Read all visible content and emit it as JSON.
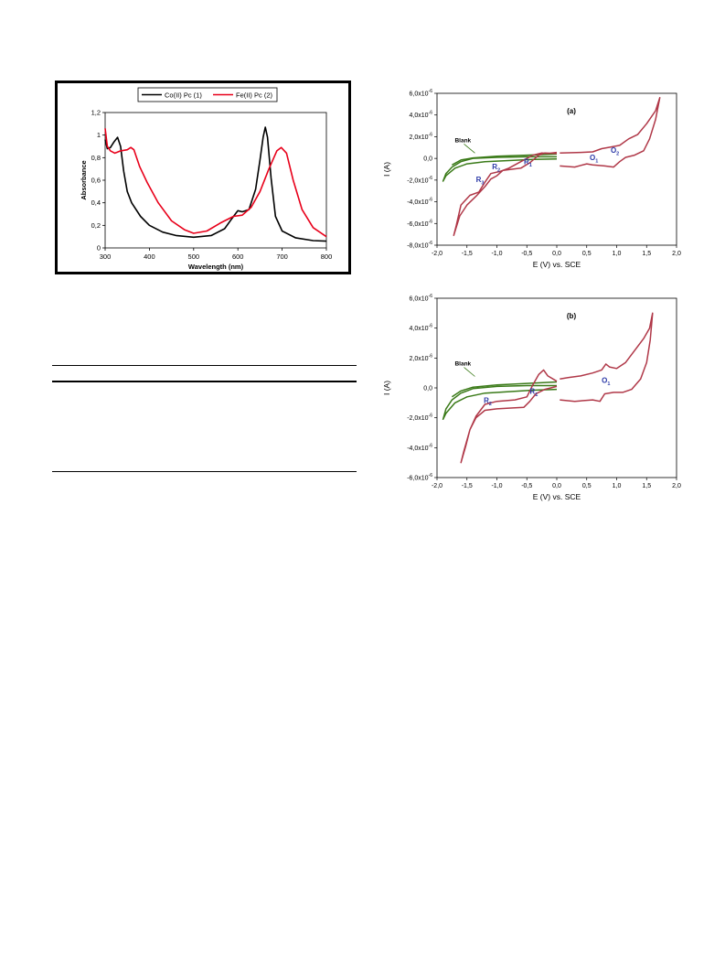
{
  "chart_data": [
    {
      "id": "uv",
      "type": "line",
      "xlabel": "Wavelength (nm)",
      "ylabel": "Absorbance",
      "xlim": [
        300,
        800
      ],
      "ylim": [
        0,
        1.2
      ],
      "xticks": [
        "300",
        "400",
        "500",
        "600",
        "700",
        "800"
      ],
      "yticks": [
        "0",
        "0,2",
        "0,4",
        "0,6",
        "0,8",
        "1",
        "1,2"
      ],
      "legend_position": "top",
      "series": [
        {
          "name": "Co(II) Pc (1)",
          "color": "#000000",
          "points": [
            [
              300,
              0.96
            ],
            [
              305,
              0.88
            ],
            [
              312,
              0.89
            ],
            [
              320,
              0.94
            ],
            [
              328,
              0.98
            ],
            [
              335,
              0.9
            ],
            [
              342,
              0.68
            ],
            [
              350,
              0.5
            ],
            [
              360,
              0.4
            ],
            [
              380,
              0.28
            ],
            [
              400,
              0.2
            ],
            [
              430,
              0.14
            ],
            [
              460,
              0.11
            ],
            [
              500,
              0.095
            ],
            [
              540,
              0.11
            ],
            [
              570,
              0.17
            ],
            [
              590,
              0.28
            ],
            [
              600,
              0.33
            ],
            [
              610,
              0.32
            ],
            [
              625,
              0.34
            ],
            [
              640,
              0.52
            ],
            [
              650,
              0.78
            ],
            [
              657,
              0.98
            ],
            [
              662,
              1.07
            ],
            [
              667,
              0.98
            ],
            [
              675,
              0.62
            ],
            [
              685,
              0.28
            ],
            [
              700,
              0.15
            ],
            [
              730,
              0.09
            ],
            [
              770,
              0.065
            ],
            [
              800,
              0.06
            ]
          ]
        },
        {
          "name": "Fe(II) Pc (2)",
          "color": "#e8001a",
          "points": [
            [
              300,
              1.06
            ],
            [
              305,
              0.9
            ],
            [
              312,
              0.86
            ],
            [
              322,
              0.84
            ],
            [
              335,
              0.86
            ],
            [
              350,
              0.87
            ],
            [
              358,
              0.89
            ],
            [
              365,
              0.87
            ],
            [
              378,
              0.72
            ],
            [
              395,
              0.58
            ],
            [
              420,
              0.4
            ],
            [
              450,
              0.24
            ],
            [
              480,
              0.16
            ],
            [
              500,
              0.13
            ],
            [
              530,
              0.15
            ],
            [
              560,
              0.22
            ],
            [
              590,
              0.28
            ],
            [
              610,
              0.29
            ],
            [
              630,
              0.36
            ],
            [
              650,
              0.5
            ],
            [
              670,
              0.7
            ],
            [
              688,
              0.86
            ],
            [
              698,
              0.89
            ],
            [
              710,
              0.84
            ],
            [
              725,
              0.6
            ],
            [
              745,
              0.34
            ],
            [
              770,
              0.18
            ],
            [
              800,
              0.1
            ]
          ]
        }
      ]
    },
    {
      "id": "cv_a",
      "type": "line",
      "panel_label": "(a)",
      "xlabel": "E (V) vs. SCE",
      "ylabel": "I (A)",
      "xlim": [
        -2.0,
        2.0
      ],
      "ylim": [
        -8e-06,
        6e-06
      ],
      "xticks": [
        "-2,0",
        "-1,5",
        "-1,0",
        "-0,5",
        "0,0",
        "0,5",
        "1,0",
        "1,5",
        "2,0"
      ],
      "yticks": [
        {
          "m": "6,0x10",
          "e": "-6"
        },
        {
          "m": "4,0x10",
          "e": "-6"
        },
        {
          "m": "2,0x10",
          "e": "-6"
        },
        {
          "m": "0,0",
          "e": ""
        },
        {
          "m": "-2,0x10",
          "e": "-6"
        },
        {
          "m": "-4,0x10",
          "e": "-6"
        },
        {
          "m": "-6,0x10",
          "e": "-6"
        },
        {
          "m": "-8,0x10",
          "e": "-6"
        }
      ],
      "blank_label": "Blank",
      "peak_labels": [
        {
          "letter": "R",
          "sub": "1",
          "e": -0.55,
          "i": -5.5e-07
        },
        {
          "letter": "R",
          "sub": "2",
          "e": -1.08,
          "i": -1e-06
        },
        {
          "letter": "R",
          "sub": "3",
          "e": -1.35,
          "i": -2.2e-06
        },
        {
          "letter": "O",
          "sub": "1",
          "e": 0.55,
          "i": -1.5e-07
        },
        {
          "letter": "O",
          "sub": "2",
          "e": 0.9,
          "i": 5e-07
        }
      ],
      "series": [
        {
          "name": "Blank",
          "color": "#3a7a18",
          "points": [
            [
              0.0,
              1.5e-07
            ],
            [
              -0.5,
              1.5e-07
            ],
            [
              -1.0,
              1e-07
            ],
            [
              -1.4,
              0.0
            ],
            [
              -1.6,
              -3e-07
            ],
            [
              -1.75,
              -8e-07
            ],
            [
              -1.85,
              -1.4e-06
            ],
            [
              -1.9,
              -2.1e-06
            ],
            [
              -1.85,
              -1.6e-06
            ],
            [
              -1.7,
              -9e-07
            ],
            [
              -1.5,
              -5e-07
            ],
            [
              -1.2,
              -3e-07
            ],
            [
              -0.8,
              -2e-07
            ],
            [
              -0.4,
              -1e-07
            ],
            [
              0.0,
              -5e-08
            ]
          ]
        },
        {
          "name": "Blank-2",
          "color": "#3a7a18",
          "points": [
            [
              0.0,
              4e-07
            ],
            [
              -0.5,
              3e-07
            ],
            [
              -1.0,
              2e-07
            ],
            [
              -1.4,
              5e-08
            ],
            [
              -1.6,
              -1.5e-07
            ],
            [
              -1.75,
              -6e-07
            ]
          ]
        },
        {
          "name": "Reduction",
          "color": "#b03848",
          "points": [
            [
              0.0,
              4.5e-07
            ],
            [
              -0.2,
              5e-07
            ],
            [
              -0.3,
              3e-07
            ],
            [
              -0.45,
              -4e-07
            ],
            [
              -0.6,
              -9e-07
            ],
            [
              -0.75,
              -1e-06
            ],
            [
              -0.9,
              -1.1e-06
            ],
            [
              -1.0,
              -1.6e-06
            ],
            [
              -1.1,
              -1.9e-06
            ],
            [
              -1.2,
              -2.6e-06
            ],
            [
              -1.35,
              -3.5e-06
            ],
            [
              -1.5,
              -4.3e-06
            ],
            [
              -1.62,
              -5.3e-06
            ],
            [
              -1.72,
              -7.1e-06
            ],
            [
              -1.68,
              -6.2e-06
            ],
            [
              -1.6,
              -4.3e-06
            ],
            [
              -1.45,
              -3.4e-06
            ],
            [
              -1.3,
              -3.1e-06
            ],
            [
              -1.2,
              -2.2e-06
            ],
            [
              -1.1,
              -1.4e-06
            ],
            [
              -0.95,
              -1.2e-06
            ],
            [
              -0.8,
              -9e-07
            ],
            [
              -0.6,
              -3e-07
            ],
            [
              -0.4,
              3e-07
            ],
            [
              -0.25,
              5e-07
            ],
            [
              -0.15,
              4.5e-07
            ],
            [
              0.0,
              5.5e-07
            ]
          ]
        },
        {
          "name": "Oxidation",
          "color": "#b03848",
          "points": [
            [
              0.05,
              -7e-07
            ],
            [
              0.3,
              -8e-07
            ],
            [
              0.5,
              -5e-07
            ],
            [
              0.6,
              -6e-07
            ],
            [
              0.8,
              -7e-07
            ],
            [
              0.95,
              -8e-07
            ],
            [
              1.05,
              -3e-07
            ],
            [
              1.15,
              1e-07
            ],
            [
              1.3,
              3e-07
            ],
            [
              1.45,
              7e-07
            ],
            [
              1.55,
              1.8e-06
            ],
            [
              1.65,
              3.6e-06
            ],
            [
              1.72,
              5.6e-06
            ],
            [
              1.65,
              4.4e-06
            ],
            [
              1.5,
              3.2e-06
            ],
            [
              1.35,
              2.2e-06
            ],
            [
              1.2,
              1.8e-06
            ],
            [
              1.05,
              1.2e-06
            ],
            [
              0.9,
              1.05e-06
            ],
            [
              0.75,
              9e-07
            ],
            [
              0.6,
              6e-07
            ],
            [
              0.4,
              5.5e-07
            ],
            [
              0.05,
              5e-07
            ]
          ]
        }
      ]
    },
    {
      "id": "cv_b",
      "type": "line",
      "panel_label": "(b)",
      "xlabel": "E (V) vs. SCE",
      "ylabel": "I (A)",
      "xlim": [
        -2.0,
        2.0
      ],
      "ylim": [
        -6e-06,
        6e-06
      ],
      "xticks": [
        "-2,0",
        "-1,5",
        "-1,0",
        "-0,5",
        "0,0",
        "0,5",
        "1,0",
        "1,5",
        "2,0"
      ],
      "yticks": [
        {
          "m": "6,0x10",
          "e": "-6"
        },
        {
          "m": "4,0x10",
          "e": "-6"
        },
        {
          "m": "2,0x10",
          "e": "-6"
        },
        {
          "m": "0,0",
          "e": ""
        },
        {
          "m": "-2,0x10",
          "e": "-6"
        },
        {
          "m": "-4,0x10",
          "e": "-6"
        },
        {
          "m": "-6,0x10",
          "e": "-6"
        }
      ],
      "blank_label": "Blank",
      "peak_labels": [
        {
          "letter": "R",
          "sub": "1",
          "e": -0.45,
          "i": -4e-07
        },
        {
          "letter": "R",
          "sub": "2",
          "e": -1.22,
          "i": -1e-06
        },
        {
          "letter": "O",
          "sub": "1",
          "e": 0.75,
          "i": 3.5e-07
        }
      ],
      "series": [
        {
          "name": "Blank",
          "color": "#3a7a18",
          "points": [
            [
              0.0,
              1.5e-07
            ],
            [
              -0.5,
              1.5e-07
            ],
            [
              -1.0,
              1e-07
            ],
            [
              -1.4,
              -5e-08
            ],
            [
              -1.6,
              -3.5e-07
            ],
            [
              -1.75,
              -8e-07
            ],
            [
              -1.85,
              -1.4e-06
            ],
            [
              -1.9,
              -2.1e-06
            ],
            [
              -1.85,
              -1.7e-06
            ],
            [
              -1.7,
              -1e-06
            ],
            [
              -1.5,
              -6e-07
            ],
            [
              -1.2,
              -3.5e-07
            ],
            [
              -0.8,
              -2.5e-07
            ],
            [
              -0.4,
              -1.5e-07
            ],
            [
              0.0,
              -1e-07
            ]
          ]
        },
        {
          "name": "Blank-2",
          "color": "#3a7a18",
          "points": [
            [
              0.0,
              4e-07
            ],
            [
              -0.5,
              3e-07
            ],
            [
              -1.0,
              2e-07
            ],
            [
              -1.4,
              5e-08
            ],
            [
              -1.6,
              -2e-07
            ],
            [
              -1.75,
              -6e-07
            ]
          ]
        },
        {
          "name": "Reduction",
          "color": "#b03848",
          "points": [
            [
              0.0,
              4.5e-07
            ],
            [
              -0.15,
              8e-07
            ],
            [
              -0.22,
              1.2e-06
            ],
            [
              -0.3,
              9e-07
            ],
            [
              -0.4,
              2e-07
            ],
            [
              -0.5,
              -6e-07
            ],
            [
              -0.7,
              -8e-07
            ],
            [
              -1.0,
              -9e-07
            ],
            [
              -1.2,
              -1.1e-06
            ],
            [
              -1.35,
              -1.9e-06
            ],
            [
              -1.45,
              -2.8e-06
            ],
            [
              -1.52,
              -3.9e-06
            ],
            [
              -1.6,
              -5e-06
            ],
            [
              -1.55,
              -4.2e-06
            ],
            [
              -1.45,
              -2.8e-06
            ],
            [
              -1.35,
              -2e-06
            ],
            [
              -1.2,
              -1.5e-06
            ],
            [
              -1.0,
              -1.4e-06
            ],
            [
              -0.8,
              -1.35e-06
            ],
            [
              -0.55,
              -1.3e-06
            ],
            [
              -0.45,
              -9e-07
            ],
            [
              -0.35,
              -4e-07
            ],
            [
              -0.2,
              -1e-07
            ],
            [
              0.0,
              1e-07
            ]
          ]
        },
        {
          "name": "Oxidation",
          "color": "#b03848",
          "points": [
            [
              0.05,
              -8e-07
            ],
            [
              0.3,
              -9e-07
            ],
            [
              0.6,
              -8e-07
            ],
            [
              0.72,
              -9e-07
            ],
            [
              0.8,
              -4e-07
            ],
            [
              0.95,
              -3e-07
            ],
            [
              1.1,
              -3e-07
            ],
            [
              1.25,
              -1e-07
            ],
            [
              1.4,
              6e-07
            ],
            [
              1.5,
              1.7e-06
            ],
            [
              1.56,
              3.2e-06
            ],
            [
              1.6,
              5e-06
            ],
            [
              1.55,
              4e-06
            ],
            [
              1.45,
              3.3e-06
            ],
            [
              1.3,
              2.5e-06
            ],
            [
              1.15,
              1.7e-06
            ],
            [
              1.0,
              1.3e-06
            ],
            [
              0.88,
              1.4e-06
            ],
            [
              0.82,
              1.6e-06
            ],
            [
              0.75,
              1.2e-06
            ],
            [
              0.6,
              1e-06
            ],
            [
              0.4,
              8e-07
            ],
            [
              0.2,
              7e-07
            ],
            [
              0.05,
              6e-07
            ]
          ]
        }
      ]
    }
  ]
}
